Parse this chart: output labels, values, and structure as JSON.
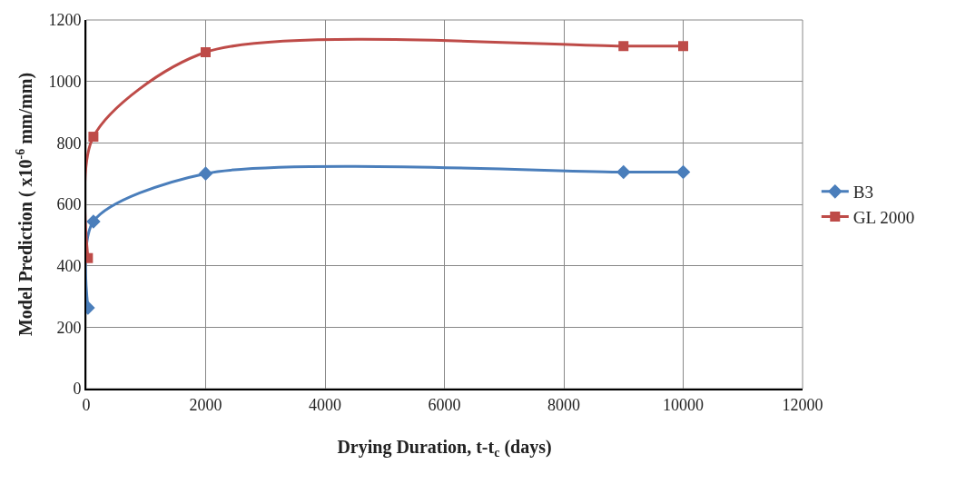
{
  "chart_data": {
    "type": "line",
    "xlabel": "Drying Duration, t-t$_{c}$ (days)",
    "ylabel": "Model Prediction ( x10$^{-6}$ mm/mm)",
    "xlim": [
      0,
      12000
    ],
    "xticks": [
      0,
      2000,
      4000,
      6000,
      8000,
      10000,
      12000
    ],
    "ylim": [
      0,
      1200
    ],
    "yticks": [
      0,
      200,
      400,
      600,
      800,
      1000,
      1200
    ],
    "grid": true,
    "legend": "right",
    "line_style": "solid",
    "series": [
      {
        "name": "B3",
        "color": "#4a7ebb",
        "marker": "diamond",
        "x": [
          28,
          120,
          2000,
          9000,
          10000
        ],
        "values": [
          263,
          544,
          700,
          705,
          705
        ]
      },
      {
        "name": "GL 2000",
        "color": "#be4b48",
        "marker": "square",
        "x": [
          28,
          120,
          2000,
          9000,
          10000
        ],
        "values": [
          425,
          820,
          1095,
          1115,
          1115
        ]
      }
    ]
  }
}
